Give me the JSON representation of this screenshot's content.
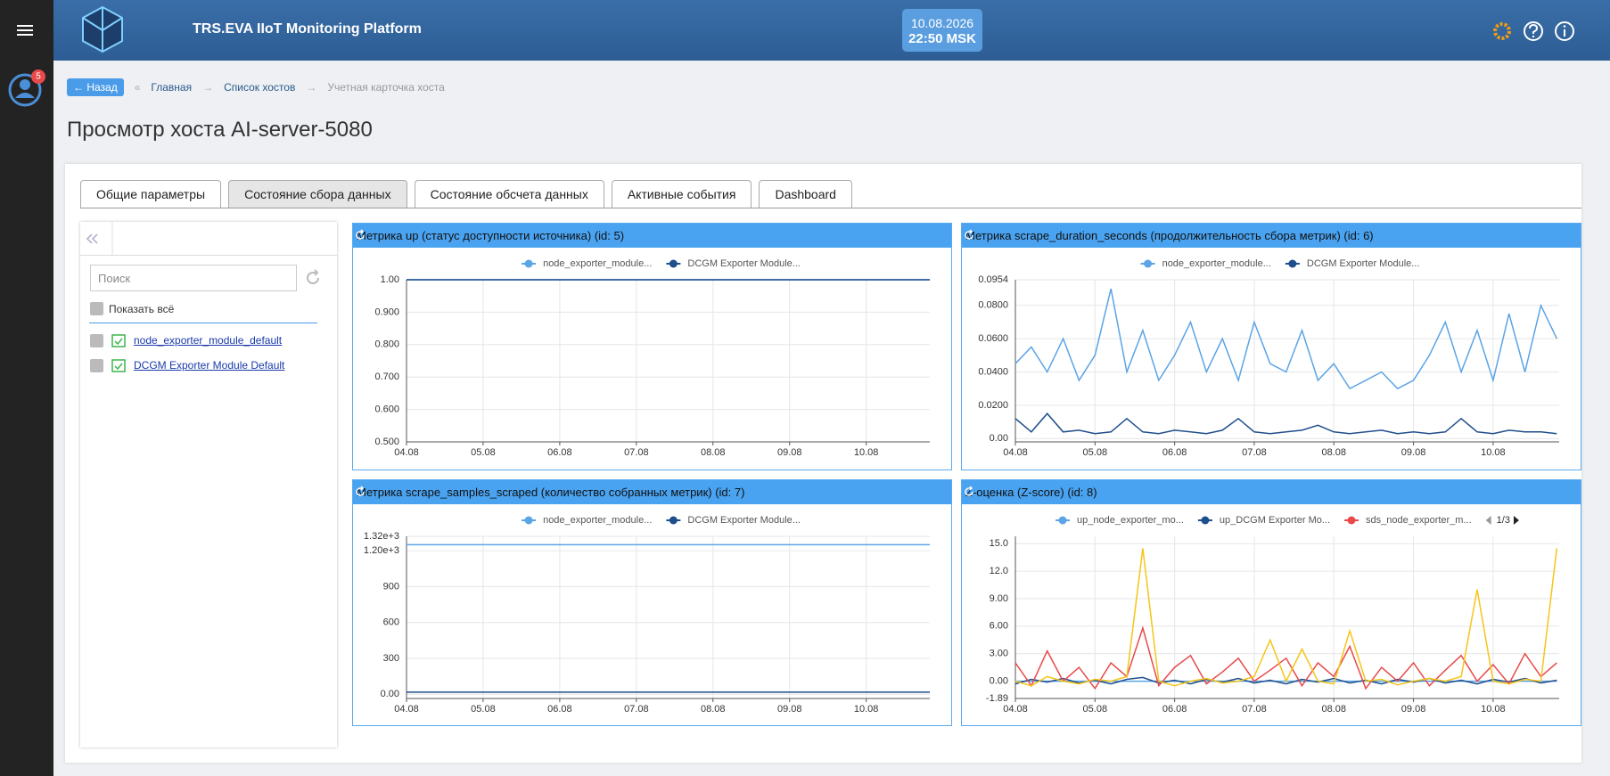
{
  "header": {
    "title": "TRS.EVA IIoT Monitoring Platform",
    "date": "10.08.2026",
    "time": "22:50 MSK"
  },
  "notifications": 5,
  "breadcrumbs": {
    "back": "Назад",
    "items": [
      "Главная",
      "Список хостов",
      "Учетная карточка хоста"
    ]
  },
  "page_title": "Просмотр хоста AI-server-5080",
  "tabs": [
    "Общие параметры",
    "Состояние сбора данных",
    "Состояние обсчета данных",
    "Активные события",
    "Dashboard"
  ],
  "active_tab": 1,
  "sidebar": {
    "search_placeholder": "Поиск",
    "show_all": "Показать всё",
    "sources": [
      "node_exporter_module_default",
      "DCGM Exporter Module Default"
    ]
  },
  "chart_data": [
    {
      "type": "line",
      "title": "Метрика up (статус доступности источника) (id: 5)",
      "x": [
        4,
        10.83
      ],
      "xlim": [
        4,
        10.83
      ],
      "xticks": [
        {
          "value": 4,
          "label": "04.08"
        },
        {
          "value": 5,
          "label": "05.08"
        },
        {
          "value": 6,
          "label": "06.08"
        },
        {
          "value": 7,
          "label": "07.08"
        },
        {
          "value": 8,
          "label": "08.08"
        },
        {
          "value": 9,
          "label": "09.08"
        },
        {
          "value": 10,
          "label": "10.08"
        }
      ],
      "ylim": [
        0.5,
        1.0
      ],
      "yticks": [
        {
          "value": 0.5,
          "label": "0.500"
        },
        {
          "value": 0.6,
          "label": "0.600"
        },
        {
          "value": 0.7,
          "label": "0.700"
        },
        {
          "value": 0.8,
          "label": "0.800"
        },
        {
          "value": 0.9,
          "label": "0.900"
        },
        {
          "value": 1,
          "label": "1.00"
        }
      ],
      "grid": true,
      "series": [
        {
          "name": "node_exporter_module...",
          "color": "#5ba4e6",
          "values": [
            1,
            1
          ]
        },
        {
          "name": "DCGM Exporter Module...",
          "color": "#1f4e8c",
          "values": [
            1,
            1
          ]
        }
      ]
    },
    {
      "type": "line",
      "title": "Метрика scrape_duration_seconds (продолжительность сбора метрик) (id: 6)",
      "x": [
        4,
        4.2,
        4.4,
        4.6,
        4.8,
        5,
        5.2,
        5.4,
        5.6,
        5.8,
        6,
        6.2,
        6.4,
        6.6,
        6.8,
        7,
        7.2,
        7.4,
        7.6,
        7.8,
        8,
        8.2,
        8.4,
        8.6,
        8.8,
        9,
        9.2,
        9.4,
        9.6,
        9.8,
        10,
        10.2,
        10.4,
        10.6,
        10.8
      ],
      "xlim": [
        4,
        10.83
      ],
      "xticks": [
        {
          "value": 4,
          "label": "04.08"
        },
        {
          "value": 5,
          "label": "05.08"
        },
        {
          "value": 6,
          "label": "06.08"
        },
        {
          "value": 7,
          "label": "07.08"
        },
        {
          "value": 8,
          "label": "08.08"
        },
        {
          "value": 9,
          "label": "09.08"
        },
        {
          "value": 10,
          "label": "10.08"
        }
      ],
      "ylim": [
        -0.002,
        0.0954
      ],
      "yticks": [
        {
          "value": 0,
          "label": "0.00"
        },
        {
          "value": 0.02,
          "label": "0.0200"
        },
        {
          "value": 0.04,
          "label": "0.0400"
        },
        {
          "value": 0.06,
          "label": "0.0600"
        },
        {
          "value": 0.08,
          "label": "0.0800"
        },
        0.0954
      ],
      "grid": true,
      "series": [
        {
          "name": "node_exporter_module...",
          "color": "#5ba4e6",
          "values": [
            0.045,
            0.055,
            0.04,
            0.06,
            0.035,
            0.05,
            0.09,
            0.04,
            0.065,
            0.035,
            0.05,
            0.07,
            0.04,
            0.06,
            0.035,
            0.07,
            0.045,
            0.04,
            0.065,
            0.035,
            0.045,
            0.03,
            0.035,
            0.04,
            0.03,
            0.035,
            0.05,
            0.07,
            0.04,
            0.065,
            0.035,
            0.075,
            0.04,
            0.08,
            0.06
          ]
        },
        {
          "name": "DCGM Exporter Module...",
          "color": "#1f4e8c",
          "values": [
            0.012,
            0.004,
            0.015,
            0.004,
            0.005,
            0.003,
            0.004,
            0.012,
            0.004,
            0.003,
            0.005,
            0.004,
            0.003,
            0.005,
            0.012,
            0.004,
            0.003,
            0.004,
            0.005,
            0.008,
            0.004,
            0.003,
            0.004,
            0.005,
            0.003,
            0.004,
            0.003,
            0.004,
            0.012,
            0.004,
            0.003,
            0.005,
            0.004,
            0.004,
            0.003
          ]
        }
      ]
    },
    {
      "type": "line",
      "title": "Метрика scrape_samples_scraped (количество собранных метрик) (id: 7)",
      "x": [
        4,
        10.83
      ],
      "xlim": [
        4,
        10.83
      ],
      "xticks": [
        {
          "value": 4,
          "label": "04.08"
        },
        {
          "value": 5,
          "label": "05.08"
        },
        {
          "value": 6,
          "label": "06.08"
        },
        {
          "value": 7,
          "label": "07.08"
        },
        {
          "value": 8,
          "label": "08.08"
        },
        {
          "value": 9,
          "label": "09.08"
        },
        {
          "value": 10,
          "label": "10.08"
        }
      ],
      "ylim": [
        -35,
        1320
      ],
      "yticks": [
        {
          "value": 0,
          "label": "0.00"
        },
        300,
        600,
        900,
        {
          "value": 1200,
          "label": "1.20e+3"
        },
        {
          "value": 1320,
          "label": "1.32e+3"
        }
      ],
      "grid": true,
      "series": [
        {
          "name": "node_exporter_module...",
          "color": "#5ba4e6",
          "values": [
            1250,
            1250
          ]
        },
        {
          "name": "DCGM Exporter Module...",
          "color": "#1f4e8c",
          "values": [
            18,
            18
          ]
        }
      ]
    },
    {
      "type": "line",
      "title": "Z-оценка (Z-score) (id: 8)",
      "x": [
        4,
        4.2,
        4.4,
        4.6,
        4.8,
        5,
        5.2,
        5.4,
        5.6,
        5.8,
        6,
        6.2,
        6.4,
        6.6,
        6.8,
        7,
        7.2,
        7.4,
        7.6,
        7.8,
        8,
        8.2,
        8.4,
        8.6,
        8.8,
        9,
        9.2,
        9.4,
        9.6,
        9.8,
        10,
        10.2,
        10.4,
        10.6,
        10.8
      ],
      "xlim": [
        4,
        10.83
      ],
      "xticks": [
        {
          "value": 4,
          "label": "04.08"
        },
        {
          "value": 5,
          "label": "05.08"
        },
        {
          "value": 6,
          "label": "06.08"
        },
        {
          "value": 7,
          "label": "07.08"
        },
        {
          "value": 8,
          "label": "08.08"
        },
        {
          "value": 9,
          "label": "09.08"
        },
        {
          "value": 10,
          "label": "10.08"
        }
      ],
      "ylim": [
        -1.89,
        15.8
      ],
      "yticks": [
        -1.89,
        {
          "value": 0,
          "label": "0.00"
        },
        {
          "value": 3,
          "label": "3.00"
        },
        {
          "value": 6,
          "label": "6.00"
        },
        {
          "value": 9,
          "label": "9.00"
        },
        {
          "value": 12,
          "label": "12.0"
        },
        {
          "value": 15,
          "label": "15.0"
        }
      ],
      "grid": true,
      "legend_page": "1/3",
      "series": [
        {
          "name": "up_node_exporter_mo...",
          "color": "#5ba4e6",
          "values": [
            0,
            0,
            0,
            0,
            0,
            0,
            0,
            0,
            0,
            0,
            0,
            0,
            0,
            0,
            0,
            0,
            0,
            0,
            0,
            0,
            0,
            0,
            0,
            0,
            0,
            0,
            0,
            0,
            0,
            0,
            0,
            0,
            0,
            0,
            0
          ]
        },
        {
          "name": "up_DCGM Exporter Mo...",
          "color": "#1f4e8c",
          "values": [
            -0.3,
            0.2,
            -0.1,
            0.3,
            -0.2,
            0.1,
            -0.3,
            0.2,
            0.4,
            -0.2,
            0.1,
            -0.3,
            0.2,
            -0.1,
            0.3,
            -0.2,
            0.1,
            -0.3,
            0.2,
            -0.1,
            0.3,
            -0.2,
            0.1,
            -0.3,
            0.2,
            -0.1,
            0.3,
            -0.2,
            0.1,
            -0.3,
            0.2,
            -0.1,
            0.3,
            -0.2,
            0.1
          ]
        },
        {
          "name": "sds_node_exporter_m...",
          "color": "#e84a4a",
          "values": [
            2,
            -0.5,
            3.3,
            0,
            1.5,
            -0.8,
            2,
            0.5,
            5.8,
            -0.5,
            1.5,
            2.8,
            -0.3,
            1,
            2.5,
            0,
            1.2,
            2.5,
            -0.5,
            2,
            0.5,
            3.8,
            -0.8,
            1.5,
            0,
            2,
            -0.5,
            1.2,
            2.8,
            0,
            1.8,
            -0.3,
            3,
            0.5,
            2
          ]
        },
        {
          "color": "#f5c518",
          "values": [
            0,
            -0.5,
            0.5,
            0,
            -0.3,
            0.2,
            0,
            0.5,
            14.5,
            0,
            -0.5,
            0,
            0.3,
            -0.2,
            0,
            0.5,
            4.5,
            0,
            3.5,
            0,
            -0.3,
            5.5,
            0,
            0.2,
            -0.4,
            0,
            0.3,
            0,
            0.5,
            10,
            0,
            -0.3,
            0.2,
            0,
            14.5
          ]
        }
      ]
    }
  ]
}
